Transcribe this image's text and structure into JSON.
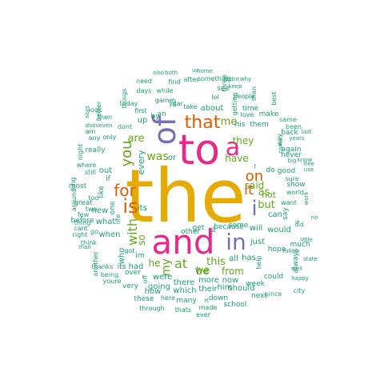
{
  "colors": {
    "tier1": "#e6ab02",
    "tier2": "#e7298a",
    "tier3": "#7570b3",
    "tier4": "#d95f02",
    "tier5": "#66a61e",
    "tier6": "#1b9e77"
  },
  "words": [
    {
      "text": "the",
      "tier": 1
    },
    {
      "text": "to",
      "tier": 2
    },
    {
      "text": "and",
      "tier": 2
    },
    {
      "text": "a",
      "tier": 2
    },
    {
      "text": "of",
      "tier": 3
    },
    {
      "text": "in",
      "tier": 3
    },
    {
      "text": "i",
      "tier": 3
    },
    {
      "text": "is",
      "tier": 4
    },
    {
      "text": "for",
      "tier": 4
    },
    {
      "text": "that",
      "tier": 4
    },
    {
      "text": "it",
      "tier": 4
    },
    {
      "text": "on",
      "tier": 4
    },
    {
      "text": "you",
      "tier": 5
    },
    {
      "text": "with",
      "tier": 5
    },
    {
      "text": "was",
      "tier": 5
    },
    {
      "text": "are",
      "tier": 5
    },
    {
      "text": "me",
      "tier": 5
    },
    {
      "text": "have",
      "tier": 5
    },
    {
      "text": "my",
      "tier": 5
    },
    {
      "text": "at",
      "tier": 5
    },
    {
      "text": "be",
      "tier": 5
    },
    {
      "text": "this",
      "tier": 5
    },
    {
      "text": "but",
      "tier": 5
    },
    {
      "text": "as",
      "tier": 5
    },
    {
      "text": "not",
      "tier": 5
    },
    {
      "text": "they",
      "tier": 5
    },
    {
      "text": "so",
      "tier": 5
    },
    {
      "text": "he",
      "tier": 5
    },
    {
      "text": "we",
      "tier": 5
    },
    {
      "text": "from",
      "tier": 5
    },
    {
      "text": "said",
      "tier": 5
    },
    {
      "text": "all",
      "tier": 6
    },
    {
      "text": "an",
      "tier": 6
    },
    {
      "text": "by",
      "tier": 6
    },
    {
      "text": "his",
      "tier": 6
    },
    {
      "text": "them",
      "tier": 6
    },
    {
      "text": "about",
      "tier": 6
    },
    {
      "text": "up",
      "tier": 6
    },
    {
      "text": "its",
      "tier": 6
    },
    {
      "text": "or",
      "tier": 6
    },
    {
      "text": "out",
      "tier": 6
    },
    {
      "text": "if",
      "tier": 6
    },
    {
      "text": "one",
      "tier": 6
    },
    {
      "text": "like",
      "tier": 6
    },
    {
      "text": "new",
      "tier": 6
    },
    {
      "text": "what",
      "tier": 6
    },
    {
      "text": "when",
      "tier": 6
    },
    {
      "text": "who",
      "tier": 6
    },
    {
      "text": "will",
      "tier": 6
    },
    {
      "text": "just",
      "tier": 6
    },
    {
      "text": "can",
      "tier": 6
    },
    {
      "text": "do",
      "tier": 6
    },
    {
      "text": "good",
      "tier": 6
    },
    {
      "text": "would",
      "tier": 6
    },
    {
      "text": "had",
      "tier": 6
    },
    {
      "text": "were",
      "tier": 6
    },
    {
      "text": "more",
      "tier": 6
    },
    {
      "text": "their",
      "tier": 6
    },
    {
      "text": "there",
      "tier": 6
    },
    {
      "text": "has",
      "tier": 6
    },
    {
      "text": "how",
      "tier": 6
    },
    {
      "text": "which",
      "tier": 6
    },
    {
      "text": "going",
      "tier": 6
    },
    {
      "text": "now",
      "tier": 6
    },
    {
      "text": "him",
      "tier": 6
    },
    {
      "text": "should",
      "tier": 6
    },
    {
      "text": "could",
      "tier": 6
    },
    {
      "text": "week",
      "tier": 6
    },
    {
      "text": "next",
      "tier": 6
    },
    {
      "text": "since",
      "tier": 6
    },
    {
      "text": "school",
      "tier": 6
    },
    {
      "text": "these",
      "tier": 6
    },
    {
      "text": "here",
      "tier": 6
    },
    {
      "text": "many",
      "tier": 6
    },
    {
      "text": "rt",
      "tier": 6
    },
    {
      "text": "down",
      "tier": 6
    },
    {
      "text": "made",
      "tier": 6
    },
    {
      "text": "thats",
      "tier": 6
    },
    {
      "text": "through",
      "tier": 6
    },
    {
      "text": "ever",
      "tier": 6
    },
    {
      "text": "very",
      "tier": 6
    },
    {
      "text": "over",
      "tier": 6
    },
    {
      "text": "off",
      "tier": 6
    },
    {
      "text": "its",
      "tier": 6
    },
    {
      "text": "being",
      "tier": 6
    },
    {
      "text": "youre",
      "tier": 6
    },
    {
      "text": "thanks",
      "tier": 6
    },
    {
      "text": "another",
      "tier": 6
    },
    {
      "text": "got",
      "tier": 6
    },
    {
      "text": "im",
      "tier": 6
    },
    {
      "text": "think",
      "tier": 6
    },
    {
      "text": "right",
      "tier": 6
    },
    {
      "text": "go",
      "tier": 6
    },
    {
      "text": "cant",
      "tier": 6
    },
    {
      "text": "thing",
      "tier": 6
    },
    {
      "text": "man",
      "tier": 6
    },
    {
      "text": "before",
      "tier": 6
    },
    {
      "text": "few",
      "tier": 6
    },
    {
      "text": "too",
      "tier": 6
    },
    {
      "text": "two",
      "tier": 6
    },
    {
      "text": "great",
      "tier": 6
    },
    {
      "text": "most",
      "tier": 6
    },
    {
      "text": "around",
      "tier": 6
    },
    {
      "text": "long",
      "tier": 6
    },
    {
      "text": "where",
      "tier": 6
    },
    {
      "text": "still",
      "tier": 6
    },
    {
      "text": "really",
      "tier": 6
    },
    {
      "text": "night",
      "tier": 6
    },
    {
      "text": "am",
      "tier": 6
    },
    {
      "text": "any",
      "tier": 6
    },
    {
      "text": "look",
      "tier": 6
    },
    {
      "text": "does",
      "tier": 6
    },
    {
      "text": "even",
      "tier": 6
    },
    {
      "text": "dont",
      "tier": 6
    },
    {
      "text": "only",
      "tier": 6
    },
    {
      "text": "says",
      "tier": 6
    },
    {
      "text": "better",
      "tier": 6
    },
    {
      "text": "then",
      "tier": 6
    },
    {
      "text": "today",
      "tier": 6
    },
    {
      "text": "first",
      "tier": 6
    },
    {
      "text": "things",
      "tier": 6
    },
    {
      "text": "days",
      "tier": 6
    },
    {
      "text": "need",
      "tier": 6
    },
    {
      "text": "game",
      "tier": 6
    },
    {
      "text": "also",
      "tier": 6
    },
    {
      "text": "both",
      "tier": 6
    },
    {
      "text": "find",
      "tier": 6
    },
    {
      "text": "while",
      "tier": 6
    },
    {
      "text": "year",
      "tier": 6
    },
    {
      "text": "our",
      "tier": 6
    },
    {
      "text": "after",
      "tier": 6
    },
    {
      "text": "us",
      "tier": 6
    },
    {
      "text": "home",
      "tier": 6
    },
    {
      "text": "something",
      "tier": 6
    },
    {
      "text": "didnt",
      "tier": 6
    },
    {
      "text": "why",
      "tier": 6
    },
    {
      "text": "three",
      "tier": 6
    },
    {
      "text": "keep",
      "tier": 6
    },
    {
      "text": "see",
      "tier": 6
    },
    {
      "text": "lol",
      "tier": 6
    },
    {
      "text": "people",
      "tier": 6
    },
    {
      "text": "than",
      "tier": 6
    },
    {
      "text": "take",
      "tier": 6
    },
    {
      "text": "getting",
      "tier": 6
    },
    {
      "text": "time",
      "tier": 6
    },
    {
      "text": "love",
      "tier": 6
    },
    {
      "text": "make",
      "tier": 6
    },
    {
      "text": "best",
      "tier": 6
    },
    {
      "text": "been",
      "tier": 6
    },
    {
      "text": "years",
      "tier": 6
    },
    {
      "text": "last",
      "tier": 6
    },
    {
      "text": "back",
      "tier": 6
    },
    {
      "text": "same",
      "tier": 6
    },
    {
      "text": "big",
      "tier": 6
    },
    {
      "text": "never",
      "tier": 6
    },
    {
      "text": "again",
      "tier": 6
    },
    {
      "text": "way",
      "tier": 6
    },
    {
      "text": "come",
      "tier": 6
    },
    {
      "text": "know",
      "tier": 6
    },
    {
      "text": "use",
      "tier": 6
    },
    {
      "text": "free",
      "tier": 6
    },
    {
      "text": "sure",
      "tier": 6
    },
    {
      "text": "show",
      "tier": 6
    },
    {
      "text": "world",
      "tier": 6
    },
    {
      "text": "want",
      "tier": 6
    },
    {
      "text": "say",
      "tier": 6
    },
    {
      "text": "work",
      "tier": 6
    },
    {
      "text": "no",
      "tier": 6
    },
    {
      "text": "much",
      "tier": 6
    },
    {
      "text": "little",
      "tier": 6
    },
    {
      "text": "follow",
      "tier": 6
    },
    {
      "text": "well",
      "tier": 6
    },
    {
      "text": "state",
      "tier": 6
    },
    {
      "text": "happy",
      "tier": 6
    },
    {
      "text": "city",
      "tier": 6
    },
    {
      "text": "always",
      "tier": 6
    },
    {
      "text": "hope",
      "tier": 6
    },
    {
      "text": "help",
      "tier": 6
    },
    {
      "text": "because",
      "tier": 6
    },
    {
      "text": "some",
      "tier": 6
    },
    {
      "text": "other",
      "tier": 6
    },
    {
      "text": "get",
      "tier": 6
    },
    {
      "text": "â",
      "tier": 6
    },
    {
      "text": "s",
      "tier": 6
    },
    {
      "text": "did",
      "tier": 6
    },
    {
      "text": "t",
      "tier": 6
    },
    {
      "text": "life",
      "tier": 6
    },
    {
      "text": "every",
      "tier": 6
    },
    {
      "text": "u",
      "tier": 6
    },
    {
      "text": "her",
      "tier": 6
    },
    {
      "text": "your",
      "tier": 6
    }
  ]
}
